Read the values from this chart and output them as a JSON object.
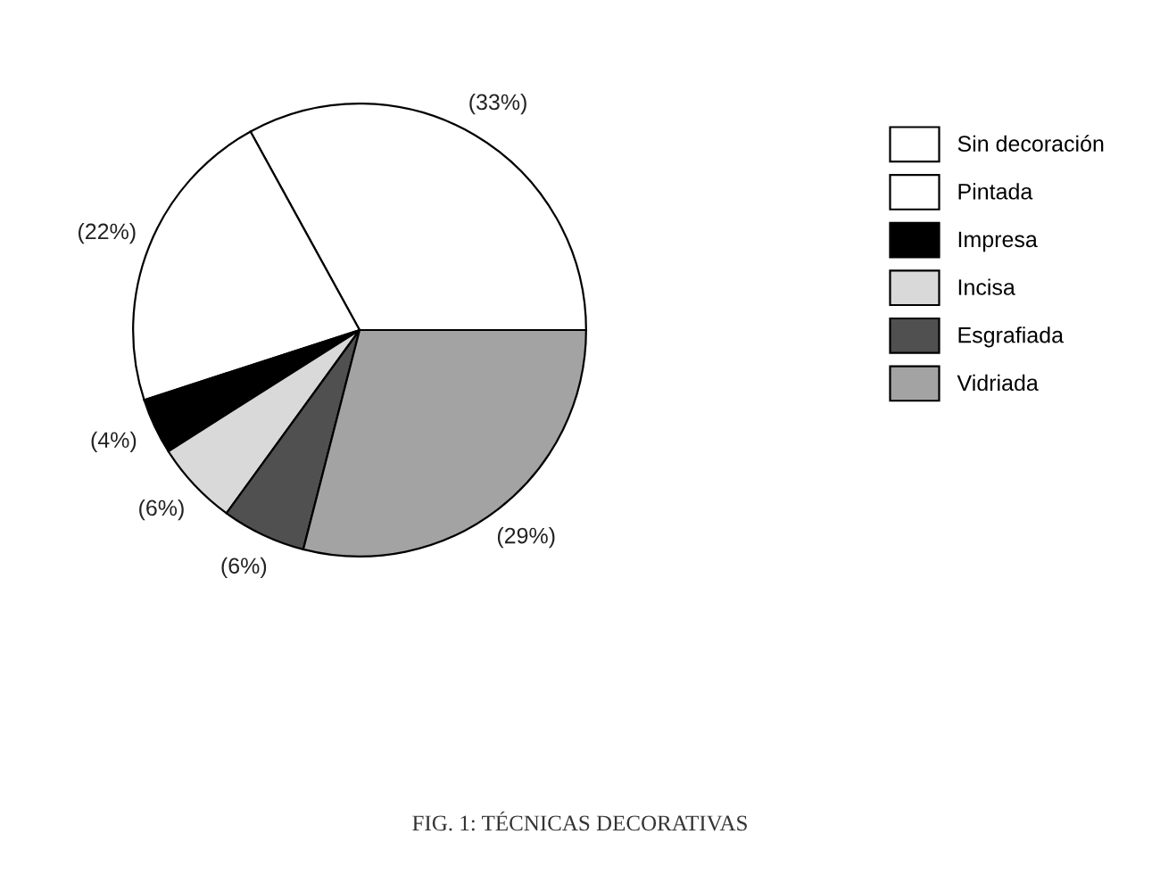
{
  "chart_data": {
    "type": "pie",
    "categories": [
      "Sin decoración",
      "Pintada",
      "Impresa",
      "Incisa",
      "Esgrafiada",
      "Vidriada"
    ],
    "values": [
      33,
      22,
      4,
      6,
      6,
      29
    ],
    "colors": [
      "#ffffff",
      "#ffffff",
      "#000000",
      "#d9d9d9",
      "#505050",
      "#a3a3a3"
    ],
    "value_labels": [
      "(33%)",
      "(22%)",
      "(4%)",
      "(6%)",
      "(6%)",
      "(29%)"
    ],
    "legend": "right",
    "annotations": [
      "FIG. 1: TÉCNICAS DECORATIVAS"
    ]
  }
}
